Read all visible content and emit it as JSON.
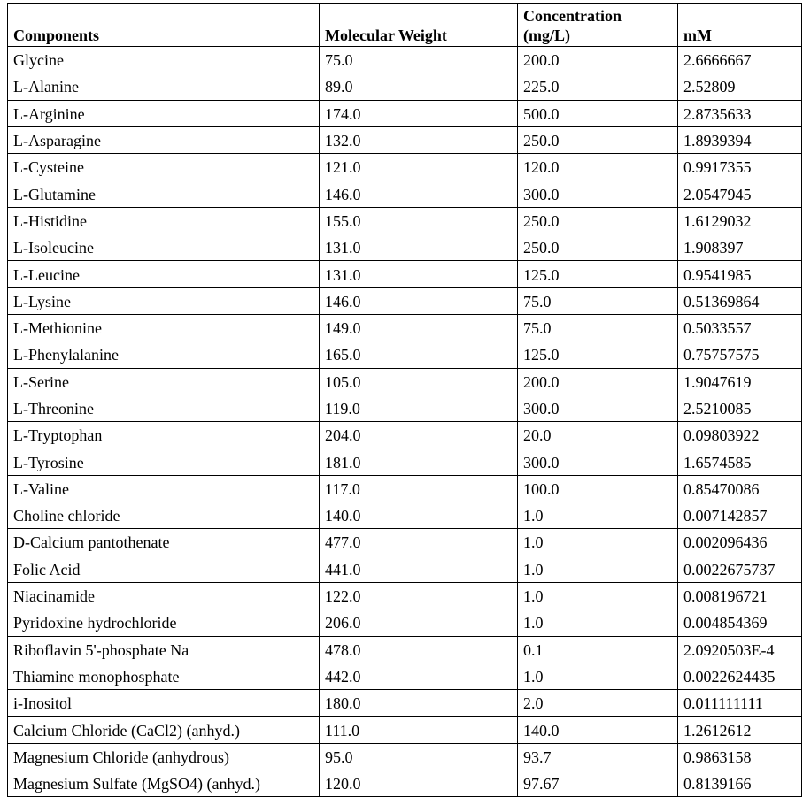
{
  "table": {
    "header": [
      "Components",
      "Molecular Weight",
      "Concentration (mg/L)",
      "mM"
    ],
    "rows": [
      [
        "Glycine",
        "75.0",
        "200.0",
        "2.6666667"
      ],
      [
        "L-Alanine",
        "89.0",
        "225.0",
        "2.52809"
      ],
      [
        "L-Arginine",
        "174.0",
        "500.0",
        "2.8735633"
      ],
      [
        "L-Asparagine",
        "132.0",
        "250.0",
        "1.8939394"
      ],
      [
        "L-Cysteine",
        "121.0",
        "120.0",
        "0.9917355"
      ],
      [
        "L-Glutamine",
        "146.0",
        "300.0",
        "2.0547945"
      ],
      [
        "L-Histidine",
        "155.0",
        "250.0",
        "1.6129032"
      ],
      [
        "L-Isoleucine",
        "131.0",
        "250.0",
        "1.908397"
      ],
      [
        "L-Leucine",
        "131.0",
        "125.0",
        "0.9541985"
      ],
      [
        "L-Lysine",
        "146.0",
        "75.0",
        "0.51369864"
      ],
      [
        "L-Methionine",
        "149.0",
        "75.0",
        "0.5033557"
      ],
      [
        "L-Phenylalanine",
        "165.0",
        "125.0",
        "0.75757575"
      ],
      [
        "L-Serine",
        "105.0",
        "200.0",
        "1.9047619"
      ],
      [
        "L-Threonine",
        "119.0",
        "300.0",
        "2.5210085"
      ],
      [
        "L-Tryptophan",
        "204.0",
        "20.0",
        "0.09803922"
      ],
      [
        "L-Tyrosine",
        "181.0",
        "300.0",
        "1.6574585"
      ],
      [
        "L-Valine",
        "117.0",
        "100.0",
        "0.85470086"
      ],
      [
        "Choline chloride",
        "140.0",
        "1.0",
        "0.007142857"
      ],
      [
        "D-Calcium pantothenate",
        "477.0",
        "1.0",
        "0.002096436"
      ],
      [
        "Folic Acid",
        "441.0",
        "1.0",
        "0.0022675737"
      ],
      [
        "Niacinamide",
        "122.0",
        "1.0",
        "0.008196721"
      ],
      [
        "Pyridoxine hydrochloride",
        "206.0",
        "1.0",
        "0.004854369"
      ],
      [
        "Riboflavin 5'-phosphate Na",
        "478.0",
        "0.1",
        "2.0920503E-4"
      ],
      [
        "Thiamine monophosphate",
        "442.0",
        "1.0",
        "0.0022624435"
      ],
      [
        "i-Inositol",
        "180.0",
        "2.0",
        "0.011111111"
      ],
      [
        "Calcium Chloride (CaCl2) (anhyd.)",
        "111.0",
        "140.0",
        "1.2612612"
      ],
      [
        "Magnesium Chloride (anhydrous)",
        "95.0",
        "93.7",
        "0.9863158"
      ],
      [
        "Magnesium Sulfate (MgSO4) (anhyd.)",
        "120.0",
        "97.67",
        "0.8139166"
      ]
    ]
  }
}
